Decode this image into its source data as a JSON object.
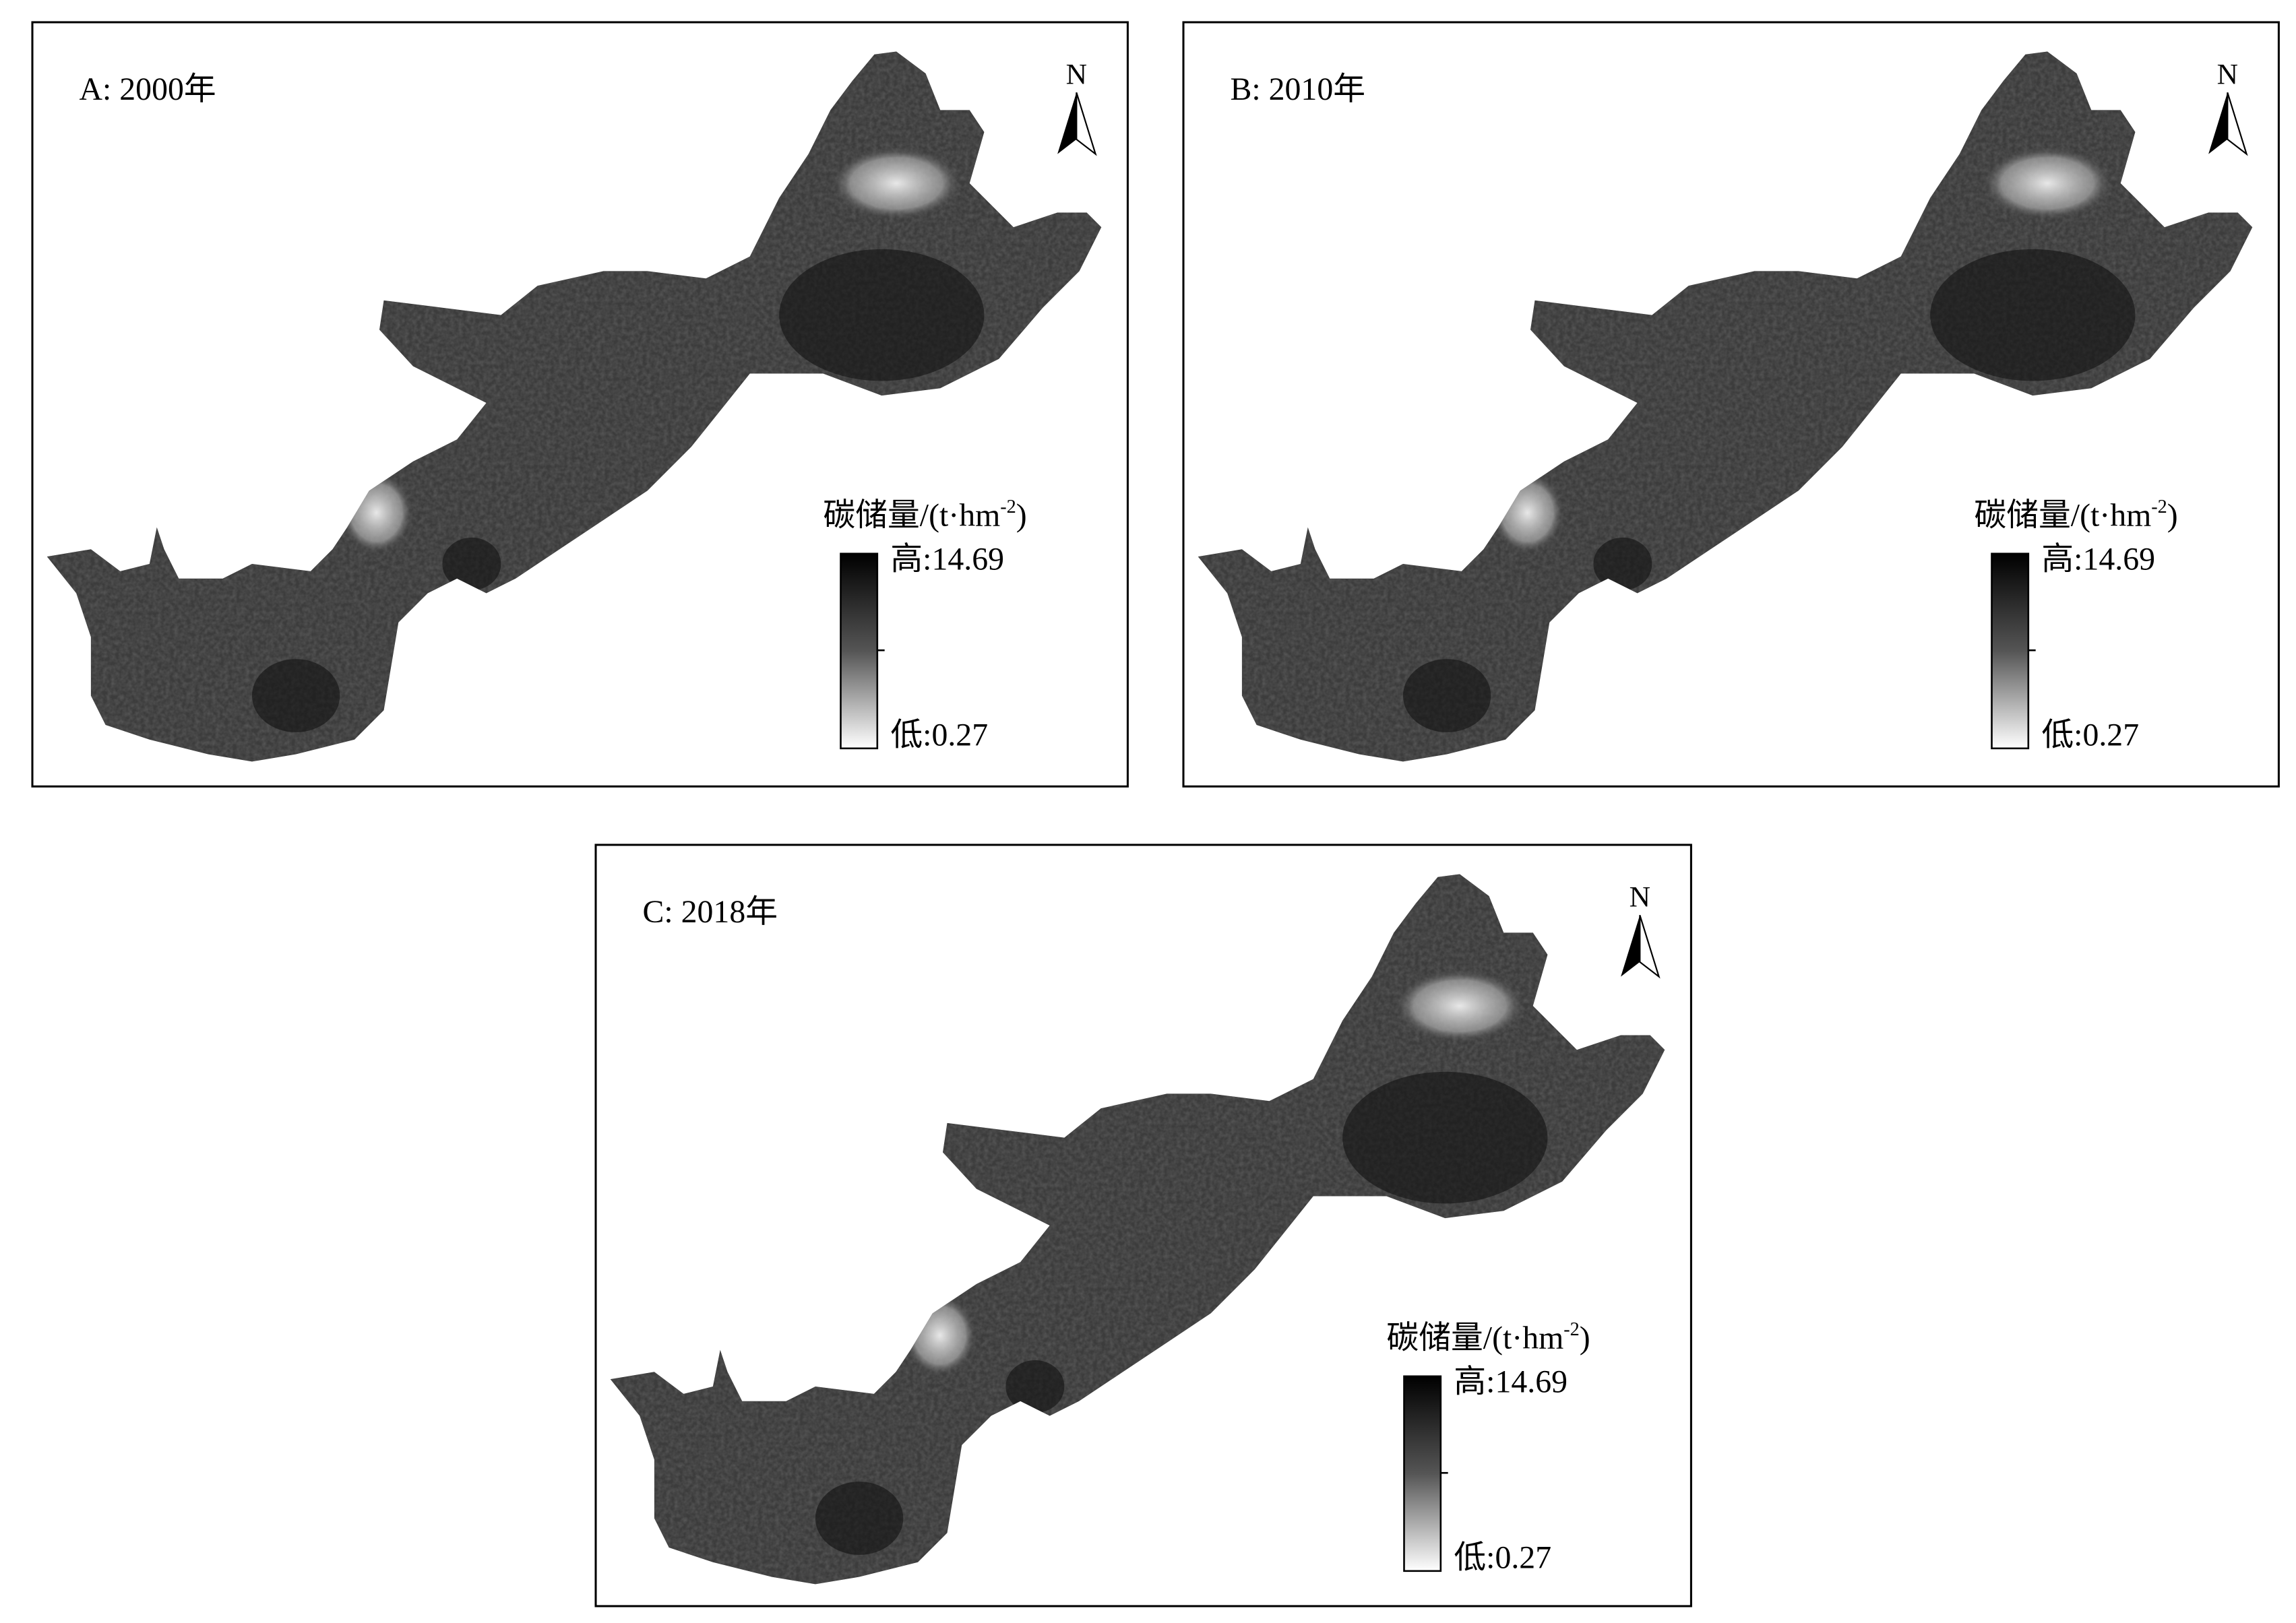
{
  "panels": [
    {
      "label": "A: 2000年",
      "north": "N",
      "legend": {
        "title": "碳储量/(t·hm",
        "title_sup": "-2",
        "title_end": ")",
        "high": "高:14.69",
        "low": "低:0.27"
      }
    },
    {
      "label": "B: 2010年",
      "north": "N",
      "legend": {
        "title": "碳储量/(t·hm",
        "title_sup": "-2",
        "title_end": ")",
        "high": "高:14.69",
        "low": "低:0.27"
      }
    },
    {
      "label": "C: 2018年",
      "north": "N",
      "legend": {
        "title": "碳储量/(t·hm",
        "title_sup": "-2",
        "title_end": ")",
        "high": "高:14.69",
        "low": "低:0.27"
      }
    }
  ]
}
